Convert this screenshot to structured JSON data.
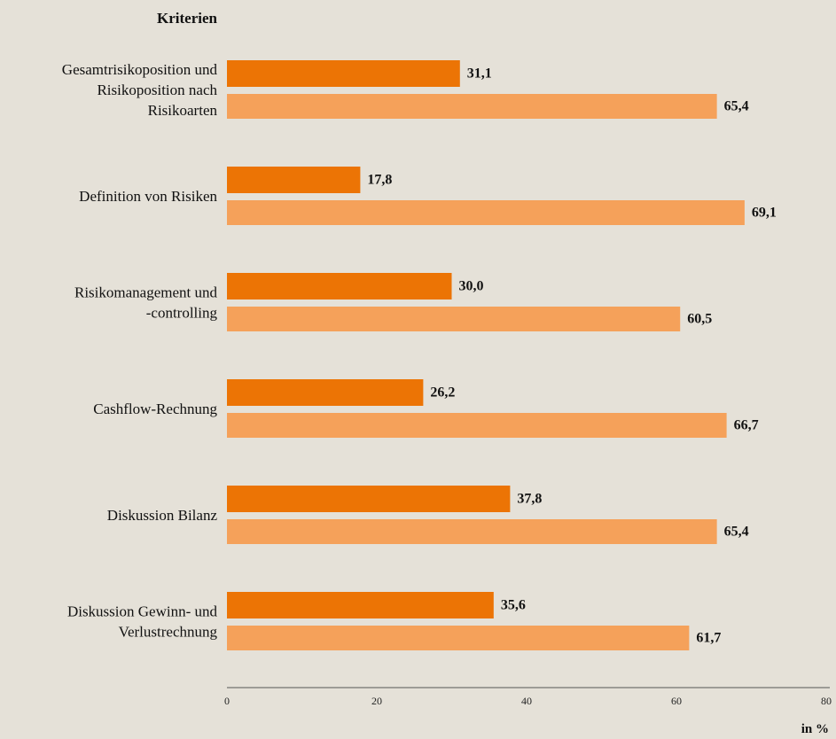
{
  "chart_data": {
    "type": "grouped_hbar",
    "title": "Kriterien",
    "x_label": "in %",
    "categories": [
      "Gesamtrisikoposition und\nRisikoposition nach\nRisikoarten",
      "Definition von Risiken",
      "Risikomanagement und\n-controlling",
      "Cashflow-Rechnung",
      "Diskussion Bilanz",
      "Diskussion Gewinn- und\nVerlustrechnung"
    ],
    "series": [
      {
        "color": "#ec7405",
        "values": [
          31.1,
          17.8,
          30.0,
          26.2,
          37.8,
          35.6
        ],
        "value_labels": [
          "31,1",
          "17,8",
          "30,0",
          "26,2",
          "37,8",
          "35,6"
        ]
      },
      {
        "color": "#f5a15a",
        "values": [
          65.4,
          69.1,
          60.5,
          66.7,
          65.4,
          61.7
        ],
        "value_labels": [
          "65,4",
          "69,1",
          "60,5",
          "66,7",
          "65,4",
          "61,7"
        ]
      }
    ],
    "xlim": [
      0,
      80
    ],
    "xticks": [
      0,
      20,
      40,
      60,
      80
    ]
  }
}
